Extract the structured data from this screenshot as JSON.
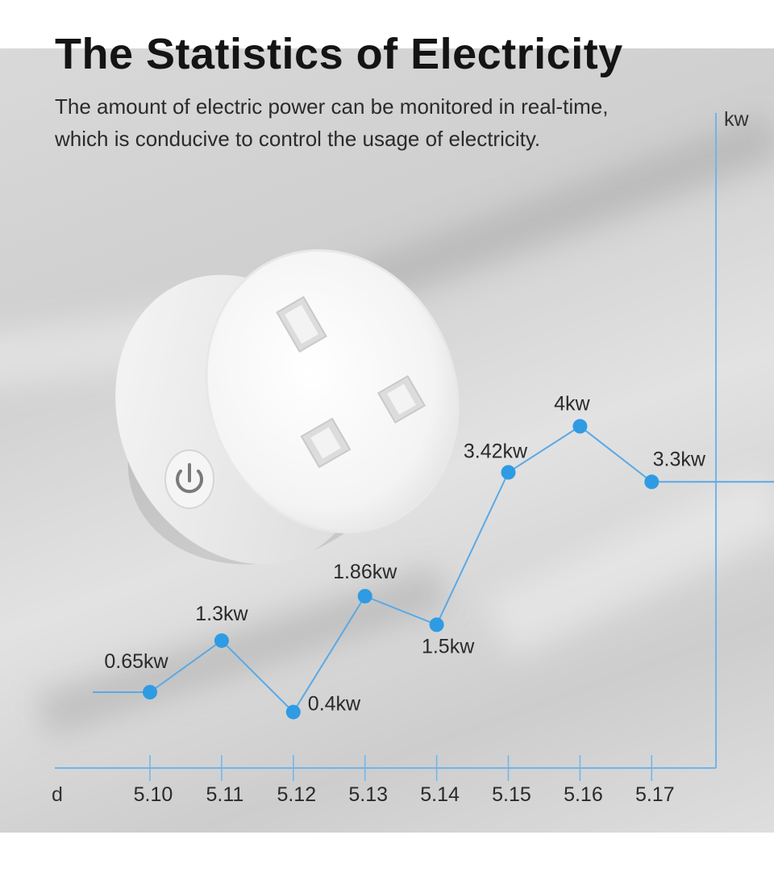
{
  "header": {
    "title": "The Statistics of Electricity",
    "subtitle_line1": "The amount of electric power can be monitored in real-time,",
    "subtitle_line2": "which is conducive to control the usage of electricity."
  },
  "colors": {
    "line": "#5aa9e6",
    "point": "#2f9be3",
    "axis": "#6fb5ea"
  },
  "icons": {
    "product": "smart-plug-uk-socket",
    "button": "power-icon"
  },
  "chart_data": {
    "type": "line",
    "categories": [
      "5.10",
      "5.11",
      "5.12",
      "5.13",
      "5.14",
      "5.15",
      "5.16",
      "5.17"
    ],
    "values": [
      0.65,
      1.3,
      0.4,
      1.86,
      1.5,
      3.42,
      4.0,
      3.3
    ],
    "data_labels": [
      "0.65kw",
      "1.3kw",
      "0.4kw",
      "1.86kw",
      "1.5kw",
      "3.42kw",
      "4kw",
      "3.3kw"
    ],
    "xlabel": "d",
    "ylabel": "kw",
    "ylim": [
      0,
      5
    ],
    "grid": false,
    "legend": "none"
  }
}
